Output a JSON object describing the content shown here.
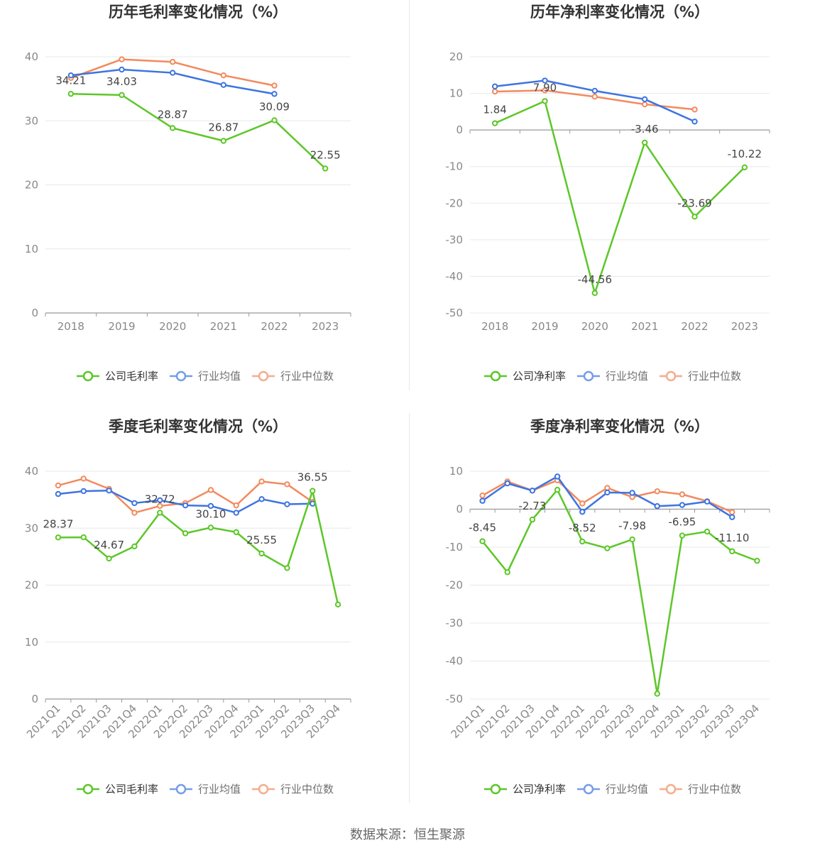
{
  "source": "数据来源：恒生聚源",
  "colors": {
    "company": "#5cc728",
    "average": "#3d74e0",
    "median": "#f28a5e"
  },
  "chart_data": [
    {
      "id": "chart1",
      "type": "line",
      "title": "历年毛利率变化情况（%）",
      "categories": [
        "2018",
        "2019",
        "2020",
        "2021",
        "2022",
        "2023"
      ],
      "ylim": [
        0,
        40
      ],
      "yticks": [
        0,
        10,
        20,
        30,
        40
      ],
      "grid": true,
      "legend_position": "bottom",
      "series": [
        {
          "name": "公司毛利率",
          "role": "company",
          "values": [
            34.21,
            34.03,
            28.87,
            26.87,
            30.09,
            22.55
          ],
          "labels": [
            "34.21",
            "34.03",
            "28.87",
            "26.87",
            "30.09",
            "22.55"
          ]
        },
        {
          "name": "行业均值",
          "role": "average",
          "values": [
            37.1,
            38.0,
            37.5,
            35.6,
            34.2,
            null
          ]
        },
        {
          "name": "行业中位数",
          "role": "median",
          "values": [
            36.7,
            39.6,
            39.2,
            37.1,
            35.5,
            null
          ]
        }
      ]
    },
    {
      "id": "chart2",
      "type": "line",
      "title": "历年净利率变化情况（%）",
      "categories": [
        "2018",
        "2019",
        "2020",
        "2021",
        "2022",
        "2023"
      ],
      "ylim": [
        -50,
        20
      ],
      "yticks": [
        -50,
        -40,
        -30,
        -20,
        -10,
        0,
        10,
        20
      ],
      "grid": true,
      "legend_position": "bottom",
      "series": [
        {
          "name": "公司净利率",
          "role": "company",
          "values": [
            1.84,
            7.9,
            -44.56,
            -3.46,
            -23.69,
            -10.22
          ],
          "labels": [
            "1.84",
            "7.90",
            "-44.56",
            "-3.46",
            "-23.69",
            "-10.22"
          ]
        },
        {
          "name": "行业均值",
          "role": "average",
          "values": [
            11.9,
            13.5,
            10.7,
            8.4,
            2.3,
            null
          ]
        },
        {
          "name": "行业中位数",
          "role": "median",
          "values": [
            10.5,
            10.8,
            9.1,
            7.0,
            5.6,
            null
          ]
        }
      ]
    },
    {
      "id": "chart3",
      "type": "line",
      "title": "季度毛利率变化情况（%）",
      "categories": [
        "2021Q1",
        "2021Q2",
        "2021Q3",
        "2021Q4",
        "2022Q1",
        "2022Q2",
        "2022Q3",
        "2022Q4",
        "2023Q1",
        "2023Q2",
        "2023Q3",
        "2023Q4"
      ],
      "ylim": [
        0,
        40
      ],
      "yticks": [
        0,
        10,
        20,
        30,
        40
      ],
      "grid": true,
      "legend_position": "bottom",
      "series": [
        {
          "name": "公司毛利率",
          "role": "company",
          "values": [
            28.37,
            28.4,
            24.67,
            26.8,
            32.72,
            29.1,
            30.1,
            29.3,
            25.55,
            23.0,
            36.55,
            16.6
          ],
          "labels": [
            "28.37",
            "",
            "24.67",
            "",
            "32.72",
            "",
            "30.10",
            "",
            "25.55",
            "",
            "36.55",
            ""
          ]
        },
        {
          "name": "行业均值",
          "role": "average",
          "values": [
            36.0,
            36.5,
            36.6,
            34.4,
            34.9,
            34.0,
            33.9,
            32.7,
            35.1,
            34.2,
            34.3,
            null
          ]
        },
        {
          "name": "行业中位数",
          "role": "median",
          "values": [
            37.5,
            38.7,
            36.9,
            32.7,
            33.9,
            34.4,
            36.7,
            34.0,
            38.2,
            37.7,
            34.6,
            null
          ]
        }
      ]
    },
    {
      "id": "chart4",
      "type": "line",
      "title": "季度净利率变化情况（%）",
      "categories": [
        "2021Q1",
        "2021Q2",
        "2021Q3",
        "2021Q4",
        "2022Q1",
        "2022Q2",
        "2022Q3",
        "2022Q4",
        "2023Q1",
        "2023Q2",
        "2023Q3",
        "2023Q4"
      ],
      "ylim": [
        -50,
        10
      ],
      "yticks": [
        -50,
        -40,
        -30,
        -20,
        -10,
        0,
        10
      ],
      "grid": true,
      "legend_position": "bottom",
      "series": [
        {
          "name": "公司净利率",
          "role": "company",
          "values": [
            -8.45,
            -16.6,
            -2.73,
            5.1,
            -8.52,
            -10.3,
            -7.98,
            -48.6,
            -6.95,
            -5.9,
            -11.1,
            -13.6
          ],
          "labels": [
            "-8.45",
            "",
            "-2.73",
            "",
            "-8.52",
            "",
            "-7.98",
            "",
            "-6.95",
            "",
            "-11.10",
            ""
          ]
        },
        {
          "name": "行业均值",
          "role": "average",
          "values": [
            2.2,
            6.8,
            4.9,
            8.6,
            -0.7,
            4.4,
            4.3,
            0.8,
            1.1,
            2.0,
            -2.1,
            null
          ]
        },
        {
          "name": "行业中位数",
          "role": "median",
          "values": [
            3.6,
            7.3,
            4.9,
            7.6,
            1.5,
            5.6,
            3.2,
            4.7,
            3.9,
            2.1,
            -0.8,
            null
          ]
        }
      ]
    }
  ]
}
